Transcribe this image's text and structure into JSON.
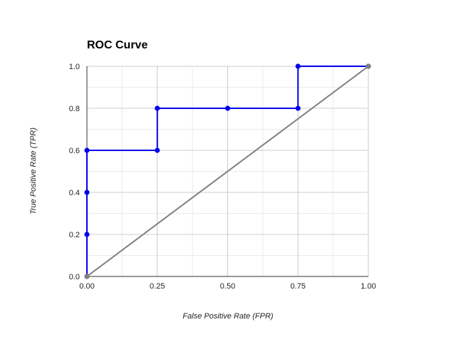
{
  "chart_data": {
    "type": "line",
    "title": "ROC Curve",
    "xlabel": "False Positive Rate (FPR)",
    "ylabel": "True Positive Rate (TPR)",
    "xlim": [
      0,
      1
    ],
    "ylim": [
      0,
      1
    ],
    "x_ticks": [
      "0.00",
      "0.25",
      "0.50",
      "0.75",
      "1.00"
    ],
    "y_ticks": [
      "0.0",
      "0.2",
      "0.4",
      "0.6",
      "0.8",
      "1.0"
    ],
    "grid": true,
    "series": [
      {
        "color": "#0000ee",
        "x": [
          0,
          0,
          0,
          0,
          0.25,
          0.25,
          0.5,
          0.75,
          0.75,
          1
        ],
        "y": [
          0,
          0.2,
          0.4,
          0.6,
          0.6,
          0.8,
          0.8,
          0.8,
          1.0,
          1.0
        ]
      },
      {
        "color": "#808080",
        "x": [
          0,
          1
        ],
        "y": [
          0,
          1
        ]
      }
    ]
  }
}
